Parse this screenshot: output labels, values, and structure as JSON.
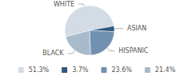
{
  "chart_data": {
    "type": "pie",
    "categories": [
      "WHITE",
      "ASIAN",
      "HISPANIC",
      "BLACK"
    ],
    "values": [
      51.3,
      3.7,
      23.6,
      21.4
    ],
    "value_labels": [
      "51.3%",
      "3.7%",
      "23.6%",
      "21.4%"
    ],
    "colors": [
      "#d3dbe5",
      "#2f5a80",
      "#7291b1",
      "#aabacd"
    ],
    "legend": "bottom"
  }
}
